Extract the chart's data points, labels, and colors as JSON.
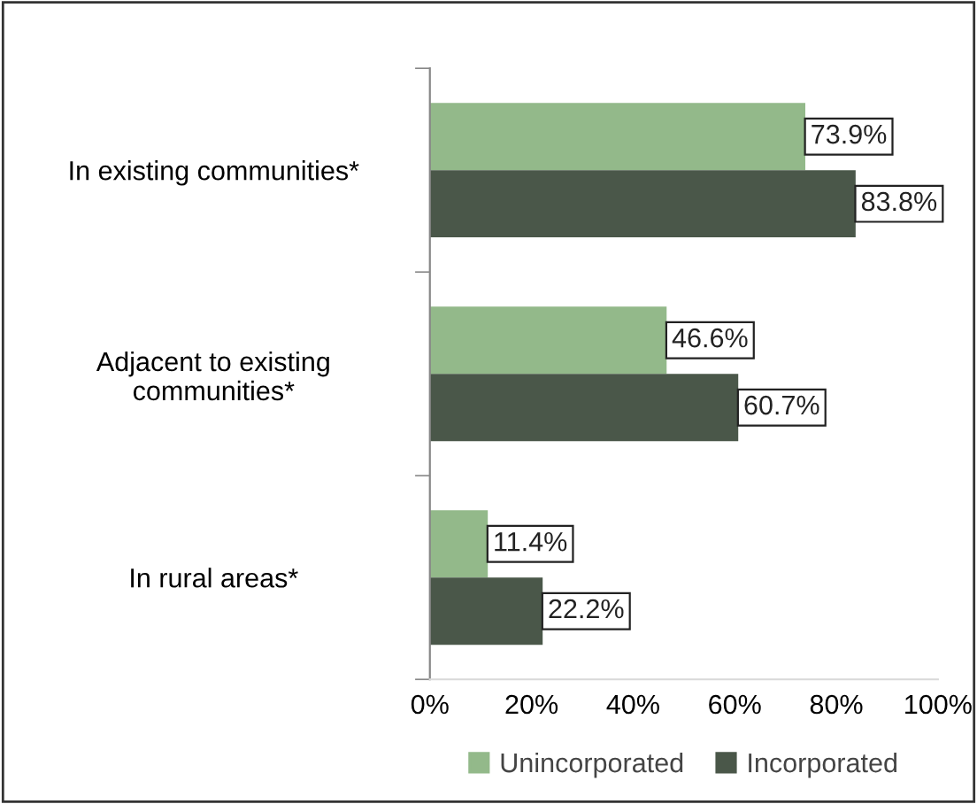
{
  "chart_data": {
    "type": "bar",
    "orientation": "horizontal",
    "categories": [
      "In existing communities*",
      "Adjacent to existing\ncommunities*",
      "In rural areas*"
    ],
    "series": [
      {
        "name": "Unincorporated",
        "color": "#93b98a",
        "values": [
          73.9,
          46.6,
          11.4
        ],
        "value_labels": [
          "73.9%",
          "46.6%",
          "11.4%"
        ]
      },
      {
        "name": "Incorporated",
        "color": "#4a5749",
        "values": [
          83.8,
          60.7,
          22.2
        ],
        "value_labels": [
          "83.8%",
          "60.7%",
          "22.2%"
        ]
      }
    ],
    "xlim": [
      0,
      100
    ],
    "xticks": [
      {
        "value": 0,
        "label": "0%"
      },
      {
        "value": 20,
        "label": "20%"
      },
      {
        "value": 40,
        "label": "40%"
      },
      {
        "value": 60,
        "label": "60%"
      },
      {
        "value": 80,
        "label": "80%"
      },
      {
        "value": 100,
        "label": "100%"
      }
    ],
    "grid": false,
    "legend": "bottom"
  }
}
